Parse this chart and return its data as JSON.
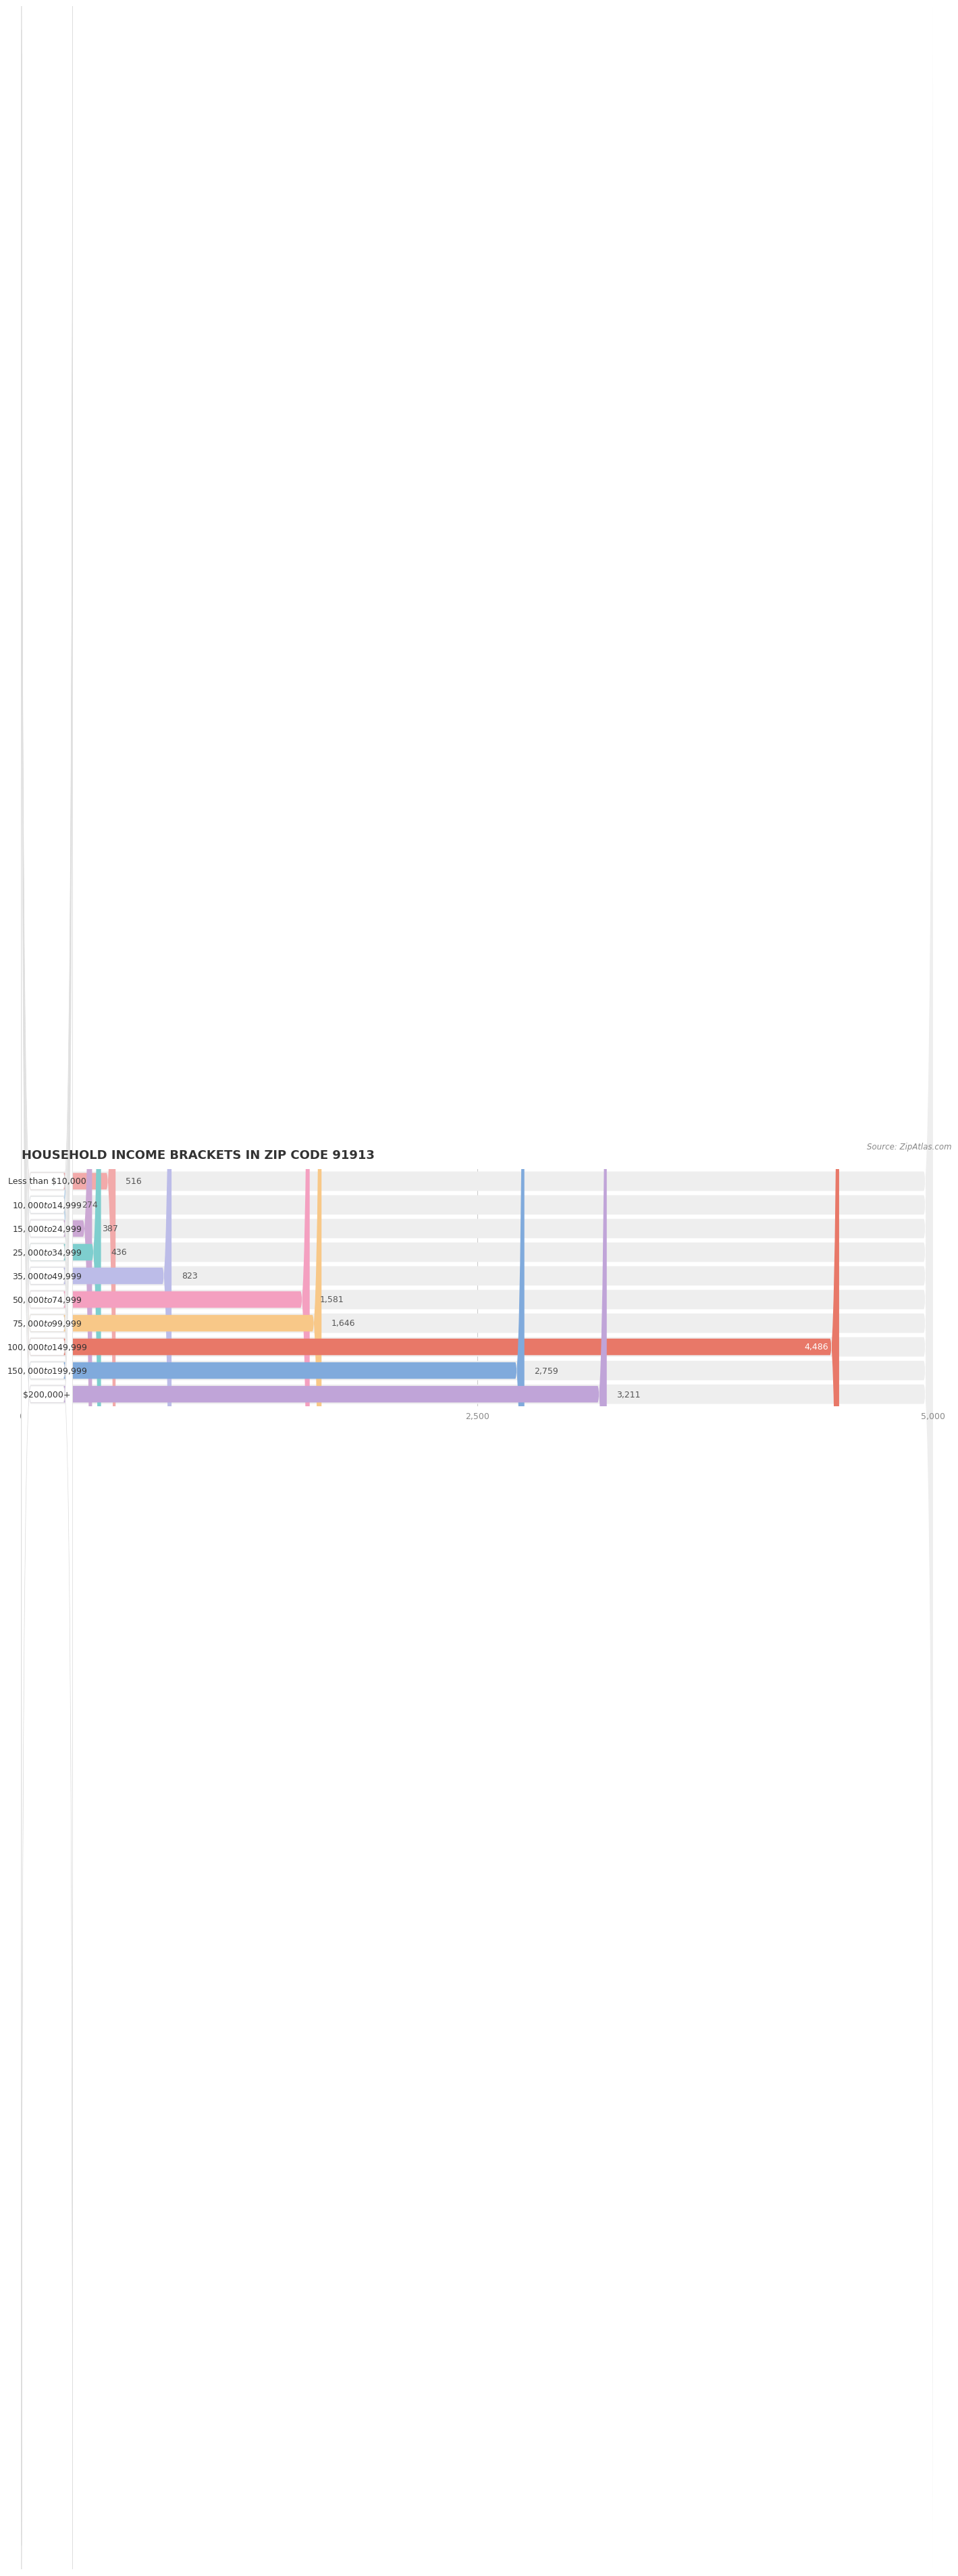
{
  "title": "HOUSEHOLD INCOME BRACKETS IN ZIP CODE 91913",
  "source": "Source: ZipAtlas.com",
  "categories": [
    "Less than $10,000",
    "$10,000 to $14,999",
    "$15,000 to $24,999",
    "$25,000 to $34,999",
    "$35,000 to $49,999",
    "$50,000 to $74,999",
    "$75,000 to $99,999",
    "$100,000 to $149,999",
    "$150,000 to $199,999",
    "$200,000+"
  ],
  "values": [
    516,
    274,
    387,
    436,
    823,
    1581,
    1646,
    4486,
    2759,
    3211
  ],
  "bar_colors": [
    "#F2AAAA",
    "#AACCEA",
    "#CCA8D4",
    "#7ECECE",
    "#BCBCE8",
    "#F4A0C0",
    "#F8C888",
    "#E87868",
    "#80AADC",
    "#C0A4D8"
  ],
  "value_labels": [
    "516",
    "274",
    "387",
    "436",
    "823",
    "1,581",
    "1,646",
    "4,486",
    "2,759",
    "3,211"
  ],
  "xlim": [
    0,
    5000
  ],
  "xticks": [
    0,
    2500,
    5000
  ],
  "bg_color": "#ffffff",
  "row_bg_color": "#eeeeee",
  "white_label_bg": "#ffffff",
  "title_fontsize": 13,
  "label_fontsize": 9,
  "value_fontsize": 9,
  "source_fontsize": 8.5
}
